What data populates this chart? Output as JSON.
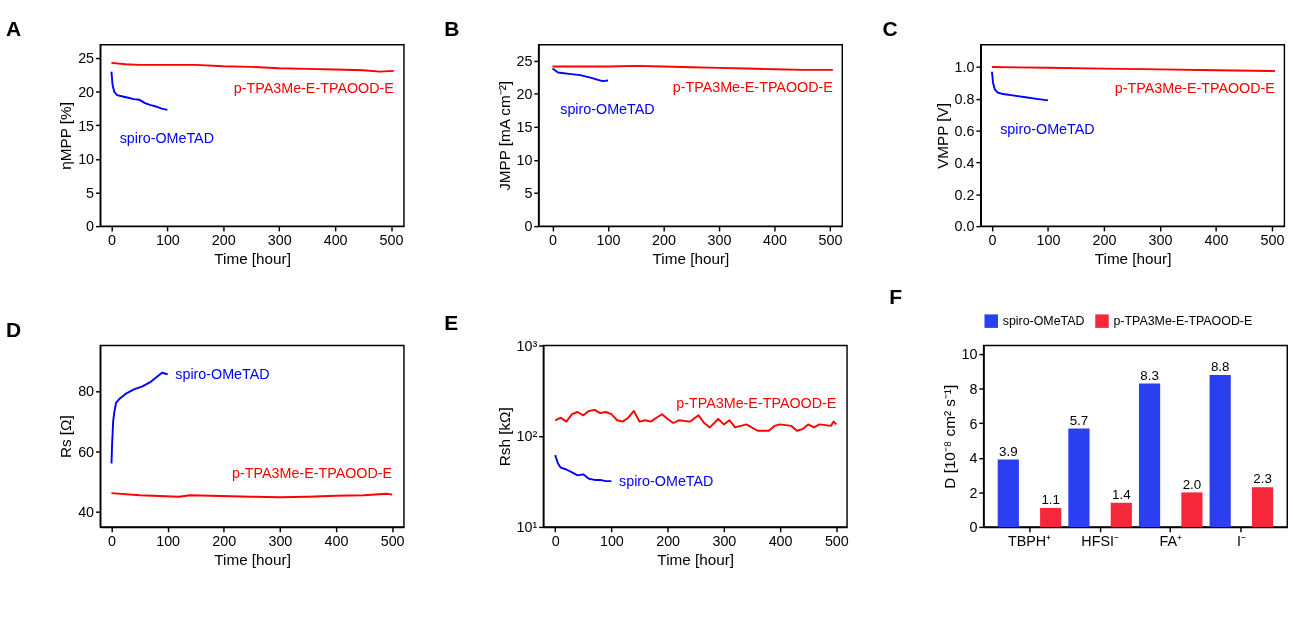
{
  "chart_data": [
    {
      "type": "line",
      "title": "A",
      "xlabel": "Time [hour]",
      "ylabel": "ηMPP [%]",
      "xlim": [
        -20,
        523
      ],
      "xticks": [
        0,
        100,
        200,
        300,
        400,
        500
      ],
      "ylim": [
        0,
        27
      ],
      "yticks": [
        0,
        5,
        10,
        15,
        20,
        25
      ],
      "series": [
        {
          "name": "spiro-OMeTAD",
          "color": "#0000ff",
          "x": [
            0,
            2,
            5,
            10,
            20,
            30,
            40,
            50,
            60,
            70,
            80,
            90,
            100
          ],
          "values": [
            23.0,
            21.0,
            20.0,
            19.5,
            19.3,
            19.1,
            18.9,
            18.8,
            18.3,
            18.0,
            17.8,
            17.5,
            17.3
          ]
        },
        {
          "name": "p-TPA3Me-E-TPAOOD-E",
          "color": "#ff0000",
          "x": [
            0,
            25,
            50,
            100,
            150,
            200,
            250,
            300,
            350,
            400,
            450,
            480,
            505
          ],
          "values": [
            24.3,
            24.1,
            24.0,
            24.0,
            24.0,
            23.8,
            23.7,
            23.5,
            23.4,
            23.3,
            23.2,
            23.0,
            23.1
          ]
        }
      ]
    },
    {
      "type": "line",
      "title": "B",
      "xlabel": "Time [hour]",
      "ylabel": "JMPP [mA cm⁻²]",
      "xlim": [
        -25,
        522
      ],
      "xticks": [
        0,
        100,
        200,
        300,
        400,
        500
      ],
      "ylim": [
        0,
        27.4
      ],
      "yticks": [
        0,
        5,
        10,
        15,
        20,
        25
      ],
      "series": [
        {
          "name": "spiro-OMeTAD",
          "color": "#0000ff",
          "x": [
            0,
            10,
            30,
            50,
            70,
            90,
            100
          ],
          "values": [
            23.8,
            23.2,
            23.0,
            22.8,
            22.4,
            21.9,
            22.0
          ]
        },
        {
          "name": "p-TPA3Me-E-TPAOOD-E",
          "color": "#ff0000",
          "x": [
            0,
            50,
            100,
            150,
            200,
            250,
            300,
            350,
            400,
            450,
            505
          ],
          "values": [
            24.1,
            24.1,
            24.1,
            24.2,
            24.1,
            24.0,
            23.9,
            23.8,
            23.7,
            23.6,
            23.6
          ]
        }
      ]
    },
    {
      "type": "line",
      "title": "C",
      "xlabel": "Time [hour]",
      "ylabel": "VMPP [V]",
      "xlim": [
        -20,
        522
      ],
      "xticks": [
        0,
        100,
        200,
        300,
        400,
        500
      ],
      "ylim": [
        0,
        1.14
      ],
      "yticks": [
        {
          "value": 0,
          "label": "0.0"
        },
        0.2,
        0.4,
        0.6,
        0.8,
        {
          "value": 1,
          "label": "1.0"
        }
      ],
      "series": [
        {
          "name": "spiro-OMeTAD",
          "color": "#0000ff",
          "x": [
            0,
            2,
            5,
            10,
            20,
            40,
            60,
            80,
            100
          ],
          "values": [
            0.97,
            0.9,
            0.86,
            0.84,
            0.83,
            0.82,
            0.81,
            0.8,
            0.79
          ]
        },
        {
          "name": "p-TPA3Me-E-TPAOOD-E",
          "color": "#ff0000",
          "x": [
            0,
            100,
            200,
            300,
            400,
            505
          ],
          "values": [
            1.0,
            0.995,
            0.99,
            0.985,
            0.98,
            0.975
          ]
        }
      ]
    },
    {
      "type": "line",
      "title": "D",
      "xlabel": "Time [hour]",
      "ylabel": "Rs [Ω]",
      "xlim": [
        -20,
        521
      ],
      "xticks": [
        0,
        100,
        200,
        300,
        400,
        500
      ],
      "ylim": [
        35,
        95
      ],
      "yticks": [
        40,
        60,
        80
      ],
      "series": [
        {
          "name": "spiro-OMeTAD",
          "color": "#0000ff",
          "x": [
            0,
            1,
            3,
            5,
            8,
            15,
            25,
            40,
            55,
            70,
            80,
            90,
            100
          ],
          "values": [
            56,
            62,
            70,
            73,
            76,
            77.5,
            79,
            80.5,
            81.5,
            83,
            84.5,
            86,
            85.5
          ]
        },
        {
          "name": "p-TPA3Me-E-TPAOOD-E",
          "color": "#ff0000",
          "x": [
            0,
            50,
            120,
            140,
            250,
            300,
            350,
            400,
            450,
            490,
            500
          ],
          "values": [
            46.2,
            45.5,
            45.0,
            45.5,
            45.0,
            44.8,
            45.0,
            45.3,
            45.5,
            46.0,
            45.7
          ]
        }
      ]
    },
    {
      "type": "line",
      "title": "E",
      "xlabel": "Time [hour]",
      "ylabel": "Rsh [kΩ]",
      "log": true,
      "xlim": [
        -21,
        519
      ],
      "xticks": [
        0,
        100,
        200,
        300,
        400,
        500
      ],
      "ylim": [
        10,
        1000
      ],
      "yticks": [
        {
          "value": 10,
          "label": "10¹"
        },
        {
          "value": 100,
          "label": "10²"
        },
        {
          "value": 1000,
          "label": "10³"
        }
      ],
      "series": [
        {
          "name": "spiro-OMeTAD",
          "color": "#0000ff",
          "x": [
            0,
            5,
            10,
            20,
            30,
            40,
            50,
            60,
            70,
            80,
            90,
            100
          ],
          "values": [
            62,
            50,
            45,
            43,
            40,
            37,
            38,
            34,
            33,
            33,
            32,
            32
          ]
        },
        {
          "name": "p-TPA3Me-E-TPAOOD-E",
          "color": "#ff0000",
          "x": [
            0,
            10,
            20,
            30,
            40,
            50,
            60,
            70,
            80,
            90,
            100,
            110,
            120,
            130,
            140,
            150,
            160,
            170,
            180,
            190,
            200,
            210,
            220,
            240,
            255,
            265,
            275,
            290,
            300,
            310,
            320,
            340,
            360,
            380,
            390,
            400,
            420,
            430,
            440,
            450,
            460,
            470,
            490,
            495,
            500
          ],
          "values": [
            150,
            160,
            145,
            175,
            185,
            170,
            190,
            195,
            180,
            185,
            175,
            150,
            145,
            160,
            190,
            145,
            150,
            145,
            160,
            175,
            155,
            140,
            150,
            145,
            170,
            140,
            125,
            155,
            135,
            150,
            125,
            135,
            115,
            115,
            130,
            135,
            130,
            115,
            120,
            135,
            125,
            135,
            130,
            145,
            135
          ]
        }
      ]
    },
    {
      "type": "bar",
      "title": "F",
      "ylabel": "D [10⁻⁸ cm² s⁻¹]",
      "categories": [
        "TBPH⁺",
        "HFSI⁻",
        "FA⁺",
        "I⁻"
      ],
      "ylim": [
        0,
        10.5
      ],
      "yticks": [
        0,
        2,
        4,
        6,
        8,
        10
      ],
      "legend": "top",
      "series": [
        {
          "name": "spiro-OMeTAD",
          "color": "#2a3ff0",
          "values": [
            3.9,
            5.7,
            8.3,
            8.8
          ],
          "value_labels": [
            "3.9",
            "5.7",
            "8.3",
            "8.8"
          ]
        },
        {
          "name": "p-TPA3Me-E-TPAOOD-E",
          "color": "#f5283a",
          "values": [
            1.1,
            1.4,
            2.0,
            2.3
          ],
          "value_labels": [
            "1.1",
            "1.4",
            "2.0",
            "2.3"
          ]
        }
      ]
    }
  ]
}
